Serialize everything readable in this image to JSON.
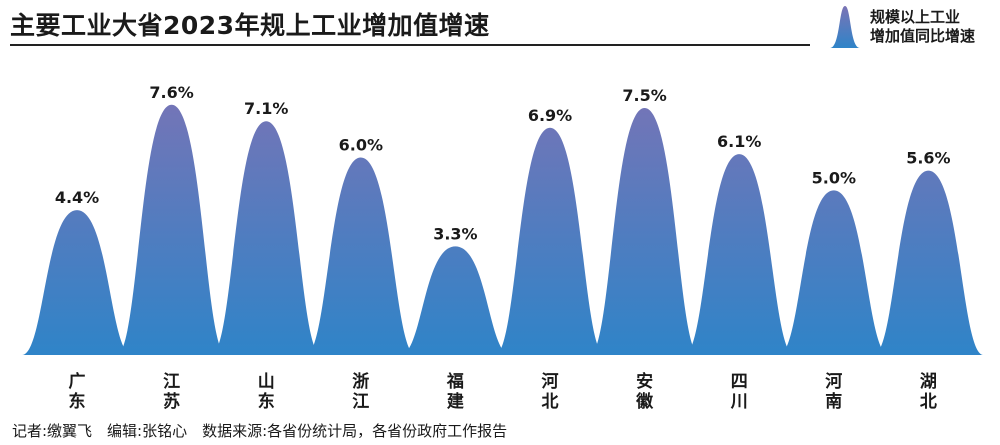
{
  "title": "主要工业大省2023年规上工业增加值增速",
  "legend": {
    "line1": "规模以上工业",
    "line2": "增加值同比增速"
  },
  "footer": "记者:缴翼飞　编辑:张铭心　数据来源:各省份统计局，各省份政府工作报告",
  "colors": {
    "bar_top": "#7b73b5",
    "bar_bottom": "#2f84c8",
    "text": "#1a1a1a"
  },
  "chart_data": {
    "type": "area",
    "categories": [
      "广东",
      "江苏",
      "山东",
      "浙江",
      "福建",
      "河北",
      "安徽",
      "四川",
      "河南",
      "湖北"
    ],
    "values": [
      4.4,
      7.6,
      7.1,
      6.0,
      3.3,
      6.9,
      7.5,
      6.1,
      5.0,
      5.6
    ],
    "data_labels": [
      "4.4%",
      "7.6%",
      "7.1%",
      "6.0%",
      "3.3%",
      "6.9%",
      "7.5%",
      "6.1%",
      "5.0%",
      "5.6%"
    ],
    "ylim": [
      0,
      8.2
    ],
    "grid": false,
    "legend_position": "top-right"
  }
}
